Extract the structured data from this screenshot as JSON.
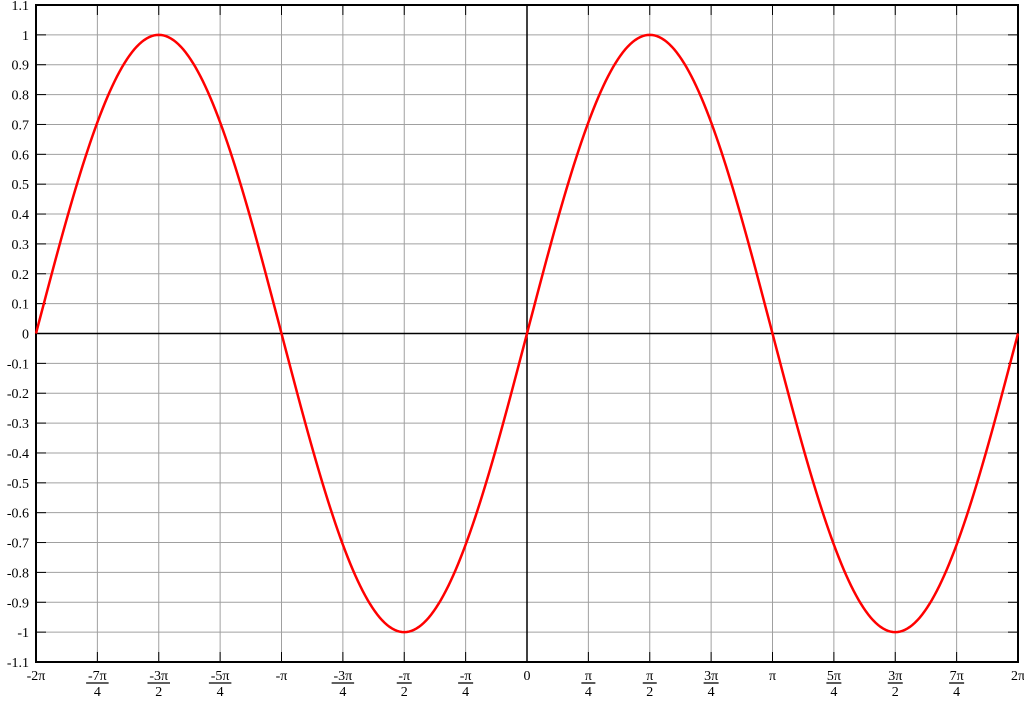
{
  "chart_data": {
    "type": "line",
    "title": "",
    "xlabel": "",
    "ylabel": "",
    "function": "sin(x)",
    "xlim": [
      -6.283185307,
      6.283185307
    ],
    "ylim": [
      -1.1,
      1.1
    ],
    "grid": true,
    "x_ticks": [
      {
        "value": -6.283185307,
        "num": "-2π",
        "den": ""
      },
      {
        "value": -5.497787144,
        "num": "-7π",
        "den": "4"
      },
      {
        "value": -4.71238898,
        "num": "-3π",
        "den": "2"
      },
      {
        "value": -3.926990817,
        "num": "-5π",
        "den": "4"
      },
      {
        "value": -3.141592654,
        "num": "-π",
        "den": ""
      },
      {
        "value": -2.35619449,
        "num": "-3π",
        "den": "4"
      },
      {
        "value": -1.570796327,
        "num": "-π",
        "den": "2"
      },
      {
        "value": -0.785398163,
        "num": "-π",
        "den": "4"
      },
      {
        "value": 0,
        "num": "0",
        "den": ""
      },
      {
        "value": 0.785398163,
        "num": "π",
        "den": "4"
      },
      {
        "value": 1.570796327,
        "num": "π",
        "den": "2"
      },
      {
        "value": 2.35619449,
        "num": "3π",
        "den": "4"
      },
      {
        "value": 3.141592654,
        "num": "π",
        "den": ""
      },
      {
        "value": 3.926990817,
        "num": "5π",
        "den": "4"
      },
      {
        "value": 4.71238898,
        "num": "3π",
        "den": "2"
      },
      {
        "value": 5.497787144,
        "num": "7π",
        "den": "4"
      },
      {
        "value": 6.283185307,
        "num": "2π",
        "den": ""
      }
    ],
    "y_ticks": [
      "1.1",
      "1",
      "0.9",
      "0.8",
      "0.7",
      "0.6",
      "0.5",
      "0.4",
      "0.3",
      "0.2",
      "0.1",
      "0",
      "-0.1",
      "-0.2",
      "-0.3",
      "-0.4",
      "-0.5",
      "-0.6",
      "-0.7",
      "-0.8",
      "-0.9",
      "-1",
      "-1.1"
    ],
    "series": [
      {
        "color": "#ff0000",
        "samples": 400
      }
    ],
    "colors": {
      "grid": "#a0a0a0",
      "axes": "#000000",
      "curve": "#ff0000"
    }
  }
}
